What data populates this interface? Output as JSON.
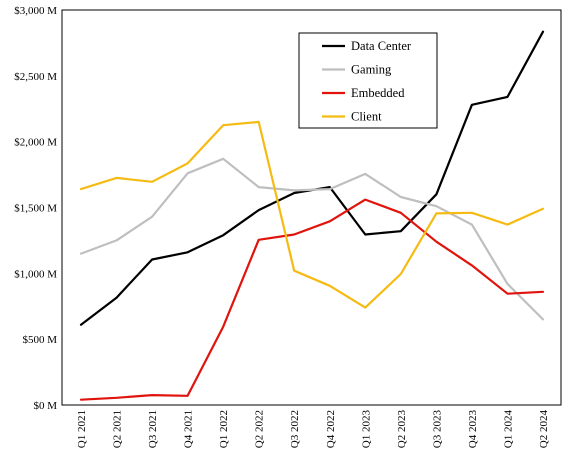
{
  "chart_data": {
    "type": "line",
    "categories": [
      "Q1 2021",
      "Q2 2021",
      "Q3 2021",
      "Q4 2021",
      "Q1 2022",
      "Q2 2022",
      "Q3 2022",
      "Q4 2022",
      "Q1 2023",
      "Q2 2023",
      "Q3 2023",
      "Q4 2023",
      "Q1 2024",
      "Q2 2024"
    ],
    "y_ticks": [
      0,
      500,
      1000,
      1500,
      2000,
      2500,
      3000
    ],
    "y_tick_labels": [
      "$0 M",
      "$500 M",
      "$1,000 M",
      "$1,500 M",
      "$2,000 M",
      "$2,500 M",
      "$3,000 M"
    ],
    "ylim": [
      0,
      3000
    ],
    "grid": false,
    "legend_position": "top-right",
    "series": [
      {
        "name": "Data Center",
        "color": "#000000",
        "values": [
          610,
          815,
          1105,
          1160,
          1290,
          1480,
          1610,
          1655,
          1295,
          1320,
          1600,
          2280,
          2340,
          2835
        ]
      },
      {
        "name": "Gaming",
        "color": "#bfbfbf",
        "values": [
          1150,
          1250,
          1430,
          1760,
          1870,
          1655,
          1630,
          1640,
          1755,
          1580,
          1510,
          1370,
          920,
          650
        ]
      },
      {
        "name": "Embedded",
        "color": "#e0140d",
        "values": [
          40,
          55,
          75,
          70,
          595,
          1255,
          1295,
          1395,
          1560,
          1460,
          1240,
          1060,
          845,
          860
        ]
      },
      {
        "name": "Client",
        "color": "#f5bb13",
        "values": [
          1640,
          1725,
          1695,
          1835,
          2125,
          2150,
          1020,
          905,
          740,
          995,
          1455,
          1460,
          1370,
          1490
        ]
      }
    ]
  }
}
